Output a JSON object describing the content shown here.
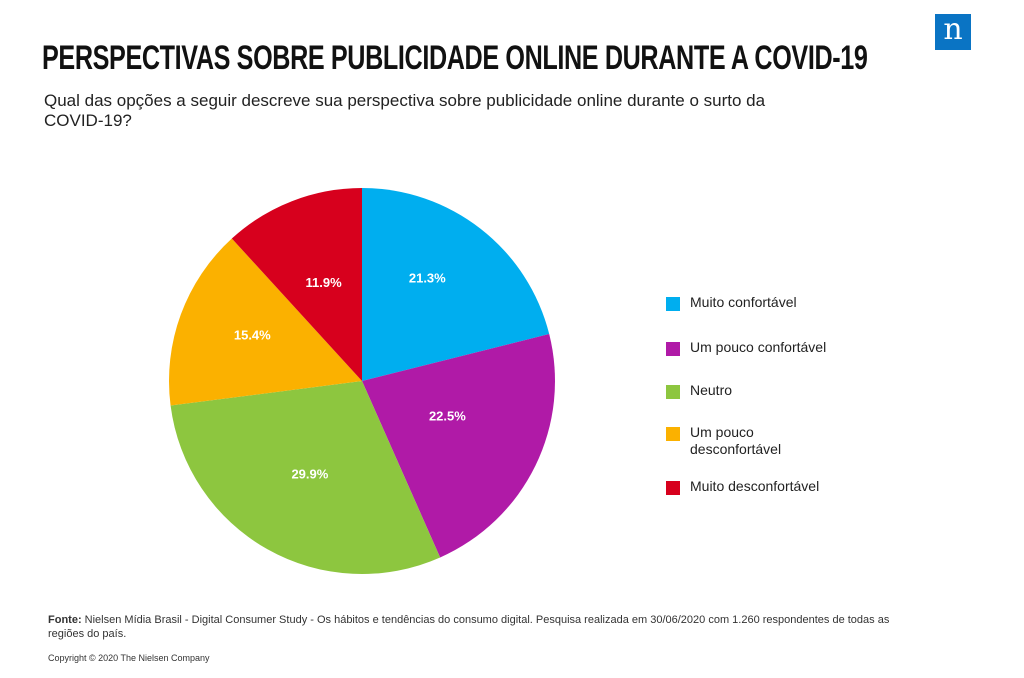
{
  "header": {
    "title": "PERSPECTIVAS SOBRE PUBLICIDADE ONLINE DURANTE A COVID-19",
    "subtitle": "Qual das opções a seguir descreve sua perspectiva sobre publicidade online durante o surto da COVID-19?",
    "logo": "n"
  },
  "chart_data": {
    "type": "pie",
    "categories": [
      "Muito confortável",
      "Um pouco confortável",
      "Neutro",
      "Um pouco desconfortável",
      "Muito desconfortável"
    ],
    "values": [
      21.3,
      22.5,
      29.9,
      15.4,
      11.9
    ],
    "value_labels": [
      "21.3%",
      "22.5%",
      "29.9%",
      "15.4%",
      "11.9%"
    ],
    "colors": [
      "#00aeef",
      "#b01aa7",
      "#8dc63f",
      "#fbb100",
      "#d7001d"
    ],
    "legend_position": "right"
  },
  "footer": {
    "source_label": "Fonte:",
    "source_text": " Nielsen Mídia Brasil - Digital Consumer Study - Os hábitos e tendências do consumo digital. Pesquisa realizada em 30/06/2020 com 1.260 respondentes de todas as regiões do país.",
    "copyright": "Copyright © 2020 The Nielsen Company"
  }
}
